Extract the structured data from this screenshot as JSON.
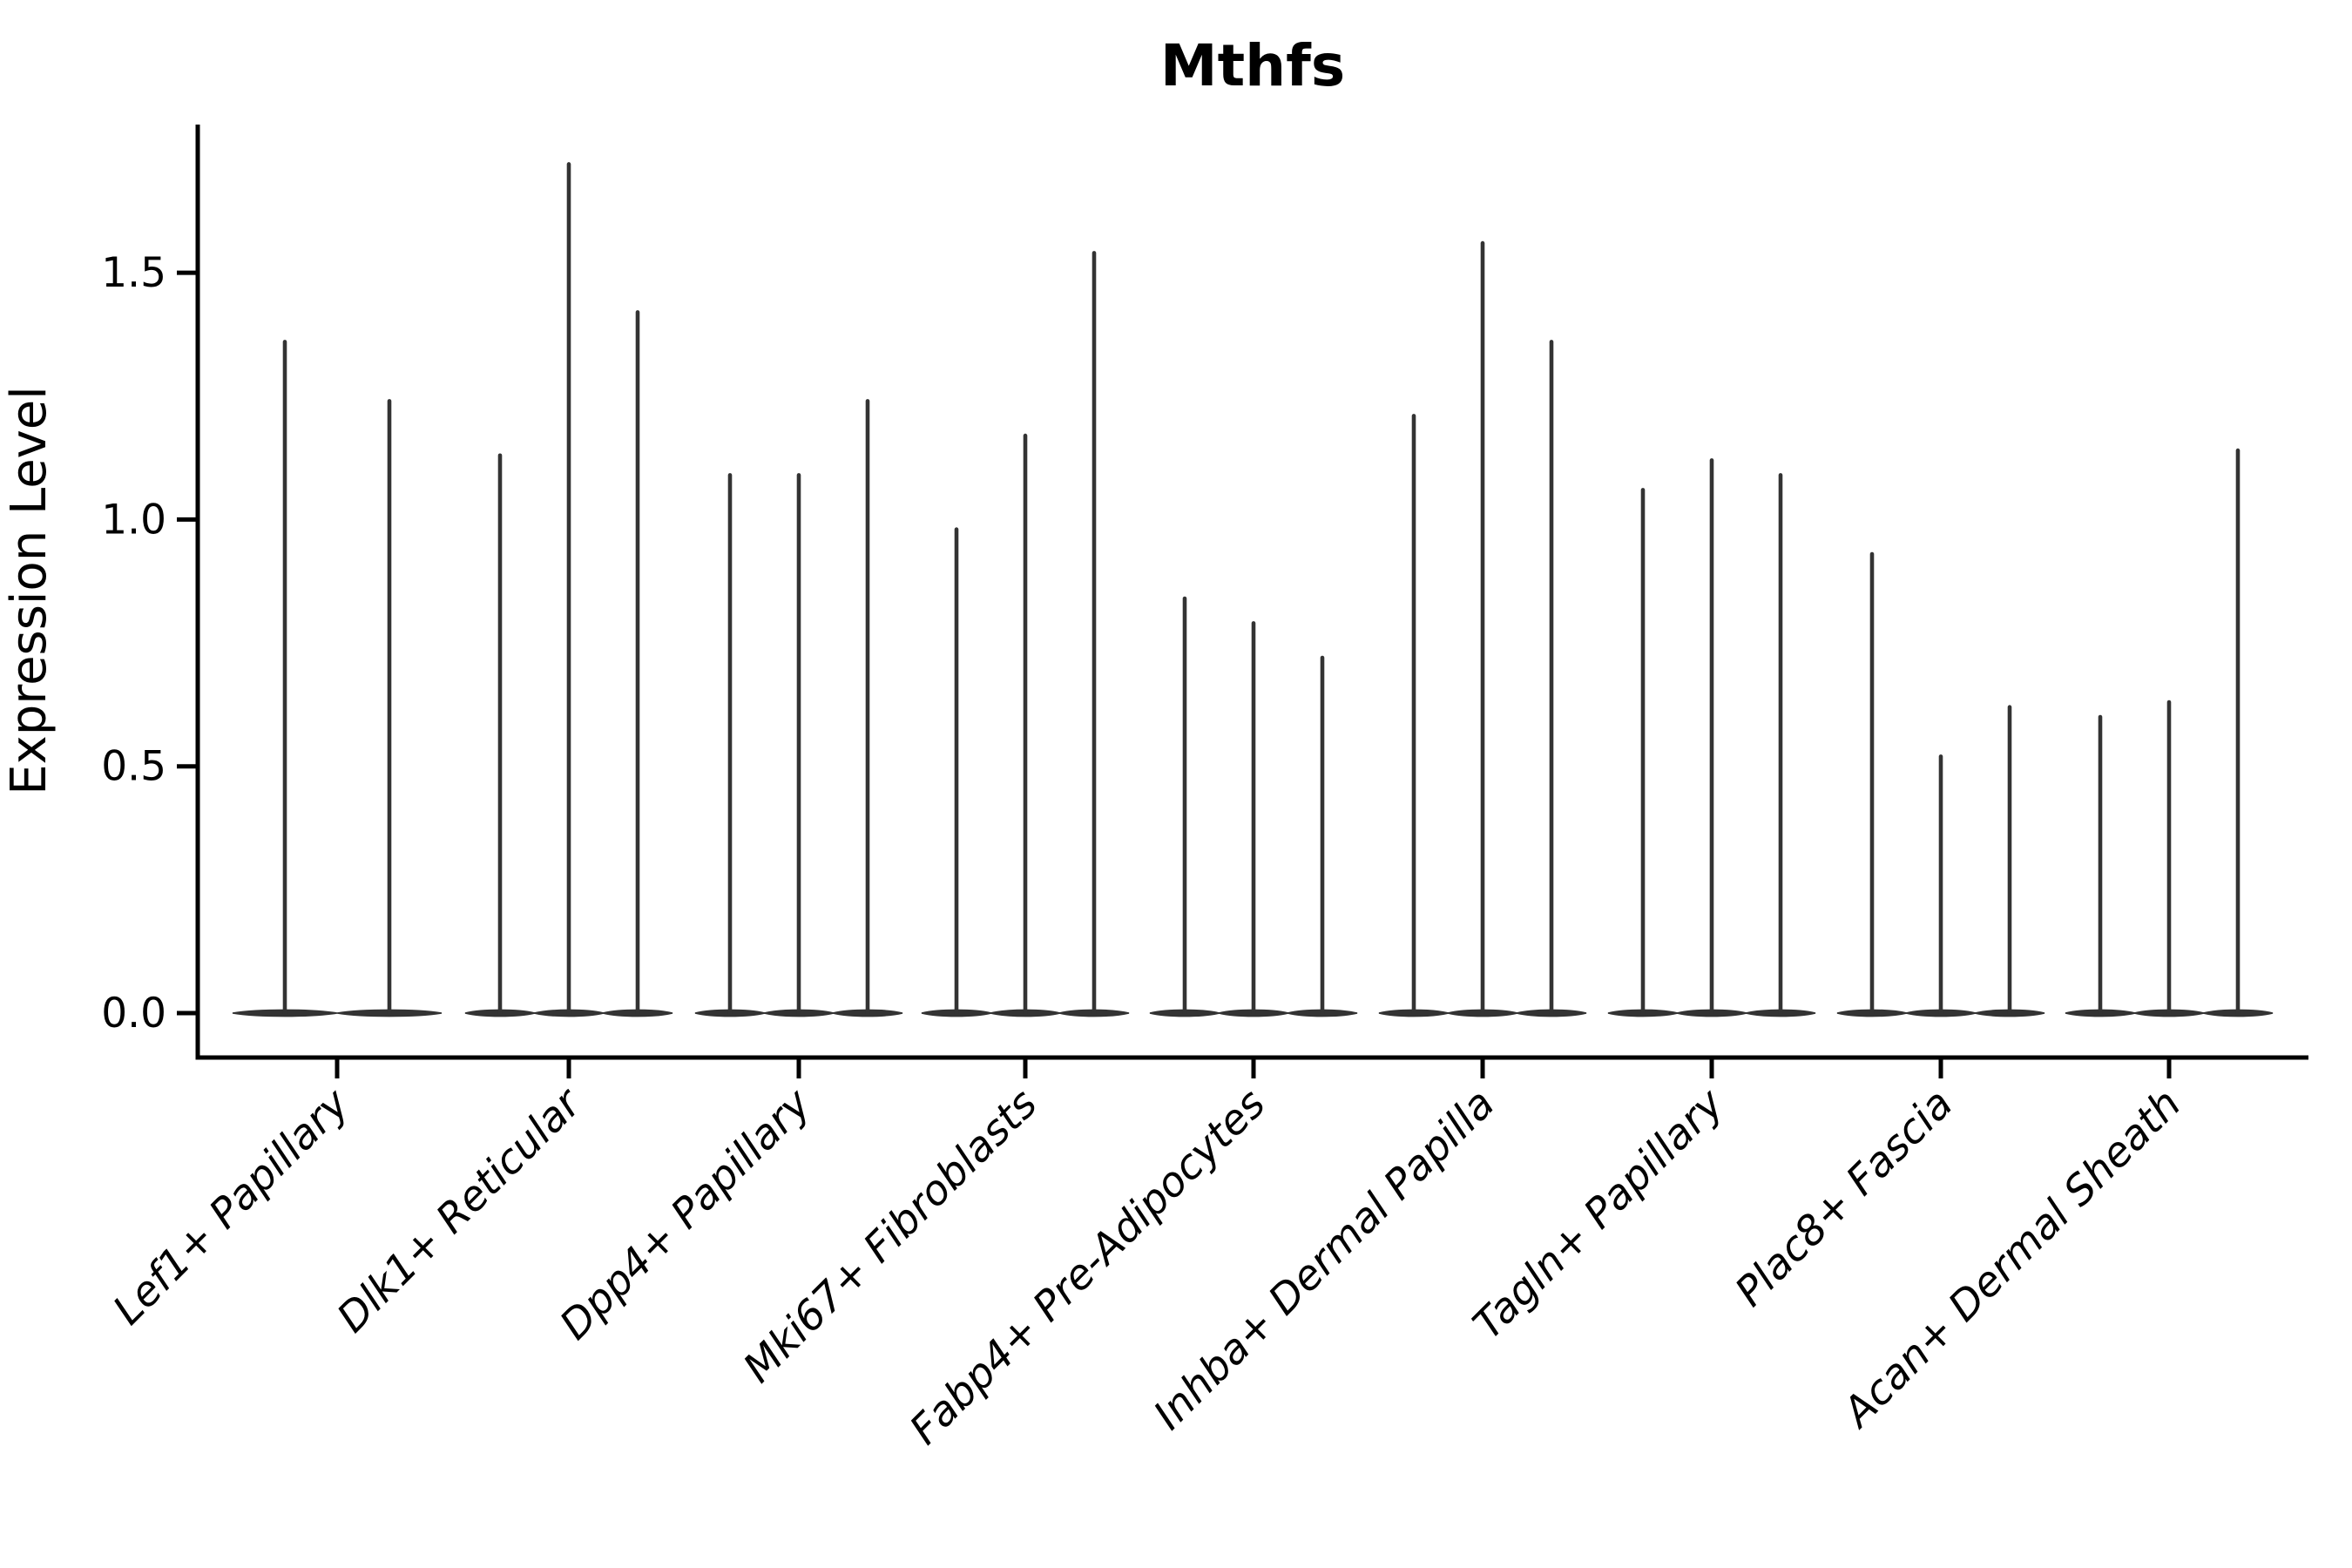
{
  "title": "Mthfs",
  "axes": {
    "ylabel": "Expression Level",
    "ytick_labels": [
      "0.0",
      "0.5",
      "1.0",
      "1.5"
    ]
  },
  "chart_data": {
    "type": "violin",
    "title": "Mthfs",
    "xlabel": "",
    "ylabel": "Expression Level",
    "ytick_values": [
      0.0,
      0.5,
      1.0,
      1.5
    ],
    "ylim": [
      -0.09,
      1.8
    ],
    "grid": false,
    "legend": "none",
    "violin_style": "needle violins: wide flat body at 0 expression with thin spike to max value",
    "violin_color": "#333333",
    "categories": [
      "Lef1+ Papillary",
      "Dlk1+ Reticular",
      "Dpp4+ Papillary",
      "Mki67+ Fibroblasts",
      "Fabp4+ Pre-Adipocytes",
      "Inhba+ Dermal Papilla",
      "Tagln+ Papillary",
      "Plac8+ Fascia",
      "Acan+ Dermal Sheath"
    ],
    "violins_per_category": [
      2,
      3,
      3,
      3,
      3,
      3,
      3,
      3,
      3
    ],
    "violin_max_expression": [
      [
        1.36,
        1.24
      ],
      [
        1.13,
        1.72,
        1.42
      ],
      [
        1.09,
        1.09,
        1.24
      ],
      [
        0.98,
        1.17,
        1.54
      ],
      [
        0.84,
        0.79,
        0.72
      ],
      [
        1.21,
        1.56,
        1.36
      ],
      [
        1.06,
        1.12,
        1.09
      ],
      [
        0.93,
        0.52,
        0.62
      ],
      [
        0.6,
        0.63,
        1.14
      ]
    ]
  }
}
